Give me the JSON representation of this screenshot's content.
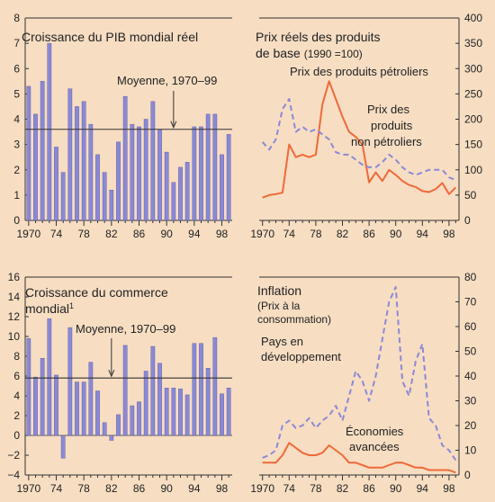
{
  "colors": {
    "background": "#f7ddc2",
    "bar": "#8a89d6",
    "bar_edge": "#56559e",
    "line_orange": "#ef6a39",
    "line_purple": "#8a89d6",
    "axis": "#333333"
  },
  "chart_data": [
    {
      "type": "bar",
      "title": "Croissance du PIB mondial réel",
      "x": [
        1970,
        1971,
        1972,
        1973,
        1974,
        1975,
        1976,
        1977,
        1978,
        1979,
        1980,
        1981,
        1982,
        1983,
        1984,
        1985,
        1986,
        1987,
        1988,
        1989,
        1990,
        1991,
        1992,
        1993,
        1994,
        1995,
        1996,
        1997,
        1998,
        1999
      ],
      "values": [
        5.3,
        4.2,
        5.5,
        7.0,
        2.9,
        1.9,
        5.2,
        4.5,
        4.7,
        3.8,
        2.6,
        1.9,
        1.2,
        3.1,
        4.9,
        3.8,
        3.7,
        4.0,
        4.7,
        3.6,
        2.7,
        1.5,
        2.1,
        2.3,
        3.7,
        3.7,
        4.2,
        4.2,
        2.6,
        3.4
      ],
      "ylim": [
        0,
        8
      ],
      "yticks": [
        "0",
        "1",
        "2",
        "3",
        "4",
        "5",
        "6",
        "7",
        "8"
      ],
      "xticks": [
        "1970",
        "74",
        "78",
        "82",
        "86",
        "90",
        "94",
        "98"
      ],
      "mean": 3.6,
      "annotation": "Moyenne, 1970–99"
    },
    {
      "type": "line",
      "title": "Prix réels des produits de base",
      "title_line2": "de base",
      "title_unit": "(1990 =100)",
      "x": [
        1970,
        1971,
        1972,
        1973,
        1974,
        1975,
        1976,
        1977,
        1978,
        1979,
        1980,
        1981,
        1982,
        1983,
        1984,
        1985,
        1986,
        1987,
        1988,
        1989,
        1990,
        1991,
        1992,
        1993,
        1994,
        1995,
        1996,
        1997,
        1998,
        1999
      ],
      "series": [
        {
          "name": "Prix des produits pétroliers",
          "values": [
            45,
            50,
            52,
            55,
            150,
            125,
            130,
            125,
            130,
            230,
            275,
            240,
            205,
            175,
            165,
            150,
            75,
            95,
            78,
            100,
            90,
            78,
            70,
            66,
            58,
            56,
            62,
            74,
            52,
            65
          ]
        },
        {
          "name": "Prix des produits non pétroliers",
          "values": [
            155,
            140,
            160,
            220,
            240,
            175,
            185,
            175,
            180,
            170,
            160,
            135,
            130,
            130,
            120,
            110,
            105,
            105,
            115,
            130,
            120,
            105,
            95,
            90,
            95,
            100,
            100,
            100,
            85,
            80
          ]
        }
      ],
      "ylim": [
        0,
        400
      ],
      "yticks": [
        "0",
        "50",
        "100",
        "150",
        "200",
        "250",
        "300",
        "350",
        "400"
      ],
      "xticks": [
        "1970",
        "74",
        "78",
        "82",
        "86",
        "90",
        "94",
        "98"
      ],
      "label_top": "Prix des produits pétroliers",
      "label_mid_1": "Prix des",
      "label_mid_2": "produits",
      "label_mid_3": "non pétroliers"
    },
    {
      "type": "bar",
      "title": "Croissance du commerce",
      "title_line2": "mondial",
      "title_sup": "1",
      "x": [
        1970,
        1971,
        1972,
        1973,
        1974,
        1975,
        1976,
        1977,
        1978,
        1979,
        1980,
        1981,
        1982,
        1983,
        1984,
        1985,
        1986,
        1987,
        1988,
        1989,
        1990,
        1991,
        1992,
        1993,
        1994,
        1995,
        1996,
        1997,
        1998,
        1999
      ],
      "values": [
        9.8,
        5.9,
        7.8,
        11.8,
        6.1,
        -2.3,
        10.9,
        5.4,
        5.4,
        7.4,
        4.5,
        1.3,
        -0.5,
        2.1,
        9.1,
        3.0,
        3.4,
        6.5,
        9.0,
        7.3,
        4.8,
        4.8,
        4.7,
        4.1,
        9.3,
        9.3,
        6.8,
        9.9,
        4.2,
        4.8
      ],
      "ylim": [
        -4,
        16
      ],
      "yticks": [
        "-4",
        "-2",
        "0",
        "2",
        "4",
        "6",
        "8",
        "10",
        "12",
        "14",
        "16"
      ],
      "xticks": [
        "1970",
        "74",
        "78",
        "82",
        "86",
        "90",
        "94",
        "98"
      ],
      "mean": 5.8,
      "annotation": "Moyenne, 1970–99"
    },
    {
      "type": "line",
      "title": "Inflation",
      "title_line2": "(Prix à la",
      "title_line3": "consommation)",
      "x": [
        1970,
        1971,
        1972,
        1973,
        1974,
        1975,
        1976,
        1977,
        1978,
        1979,
        1980,
        1981,
        1982,
        1983,
        1984,
        1985,
        1986,
        1987,
        1988,
        1989,
        1990,
        1991,
        1992,
        1993,
        1994,
        1995,
        1996,
        1997,
        1998,
        1999
      ],
      "series": [
        {
          "name": "Pays en développement",
          "values": [
            7,
            8,
            10,
            20,
            22,
            19,
            20,
            23,
            19,
            22,
            24,
            28,
            22,
            32,
            42,
            38,
            30,
            40,
            55,
            70,
            76,
            38,
            32,
            46,
            53,
            23,
            20,
            12,
            10,
            6
          ]
        },
        {
          "name": "Économies avancées",
          "values": [
            5,
            5,
            5,
            8,
            13,
            11,
            9,
            8,
            8,
            9,
            12,
            10,
            8,
            5,
            5,
            4,
            3,
            3,
            3,
            4,
            5,
            5,
            4,
            3,
            3,
            2,
            2,
            2,
            2,
            1
          ]
        }
      ],
      "ylim": [
        0,
        80
      ],
      "yticks": [
        "0",
        "10",
        "20",
        "30",
        "40",
        "50",
        "60",
        "70",
        "80"
      ],
      "xticks": [
        "1970",
        "74",
        "78",
        "82",
        "86",
        "90",
        "94",
        "98"
      ],
      "label_dev_1": "Pays en",
      "label_dev_2": "développement",
      "label_adv_1": "Économies",
      "label_adv_2": "avancées"
    }
  ]
}
